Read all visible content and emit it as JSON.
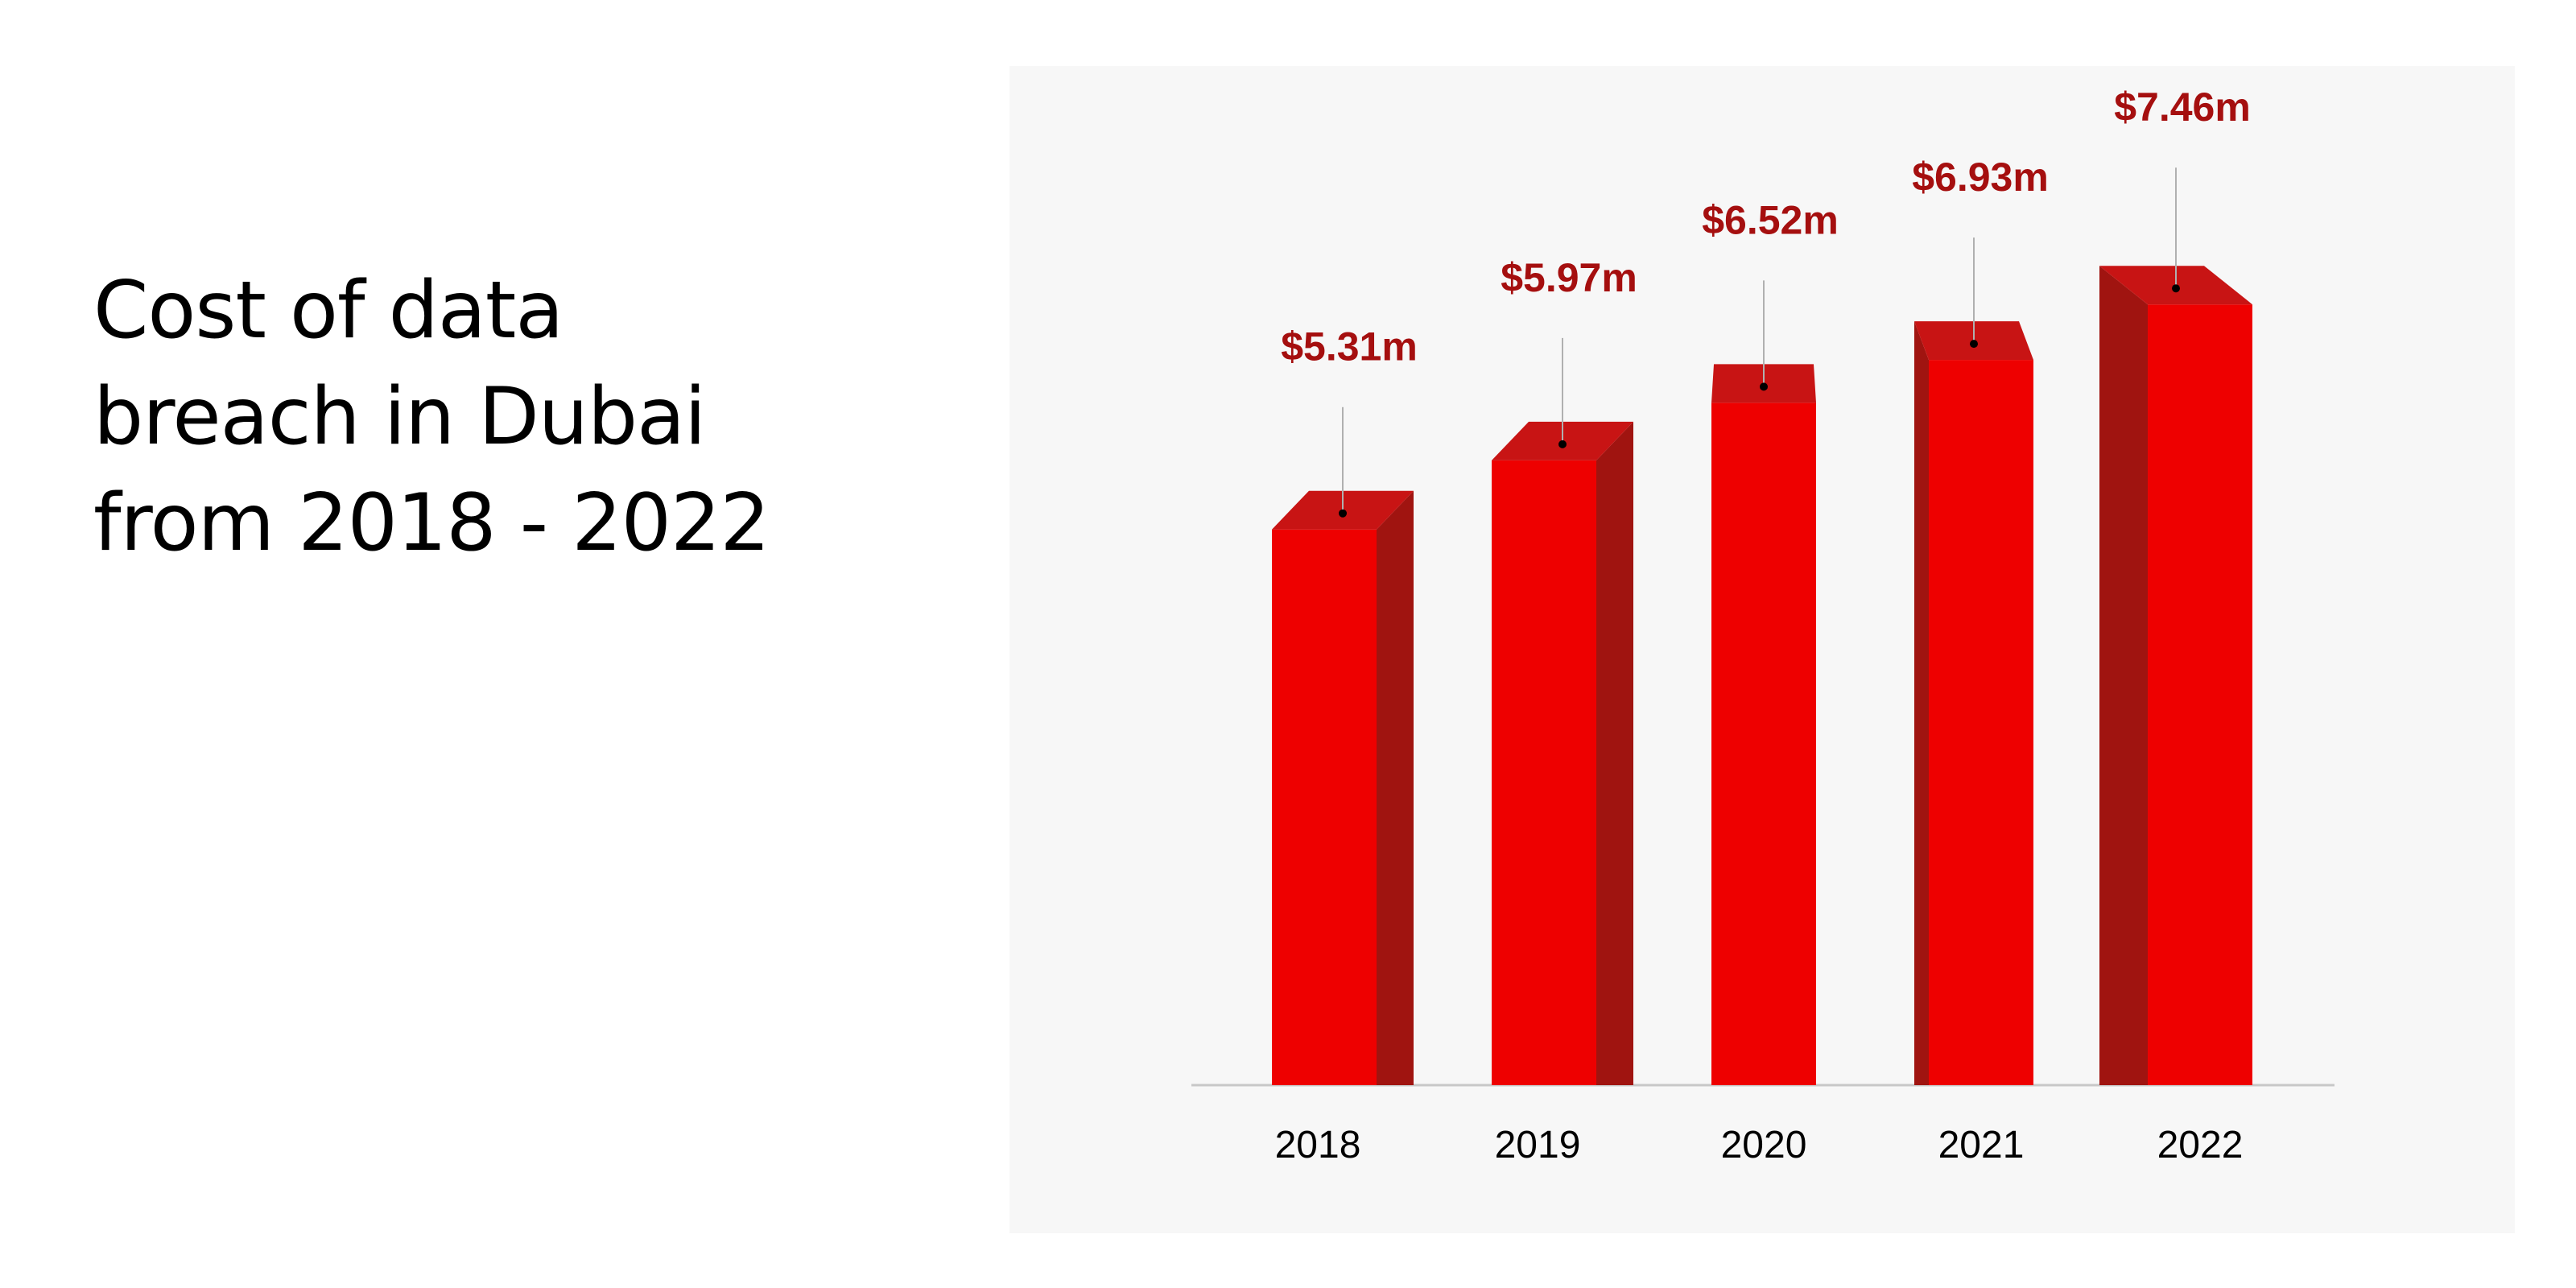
{
  "title": {
    "line1": "Cost of data",
    "line2": "breach in Dubai",
    "line3": "from 2018 - 2022"
  },
  "colors": {
    "bar_front": "#ee0000",
    "bar_top": "#c81414",
    "bar_side": "#a01410",
    "label": "#a50f0f",
    "panel": "#f7f7f7"
  },
  "chart_data": {
    "type": "bar",
    "title": "Cost of data breach in Dubai from 2018 - 2022",
    "categories": [
      "2018",
      "2019",
      "2020",
      "2021",
      "2022"
    ],
    "values": [
      5.31,
      5.97,
      6.52,
      6.93,
      7.46
    ],
    "value_labels": [
      "$5.31m",
      "$5.97m",
      "$6.52m",
      "$6.93m",
      "$7.46m"
    ],
    "unit": "$ million",
    "xlabel": "",
    "ylabel": "",
    "ylim": [
      0,
      8.5
    ],
    "grid": false,
    "legend": "none"
  }
}
